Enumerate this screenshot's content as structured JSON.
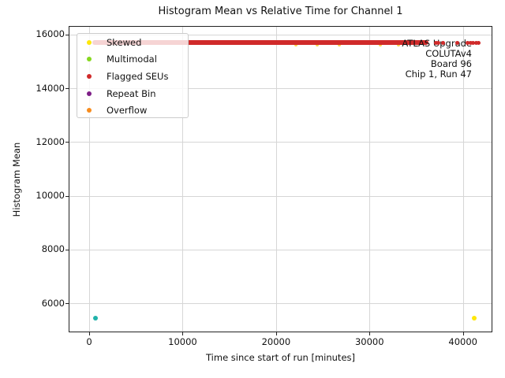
{
  "chart_data": {
    "type": "scatter",
    "title": "Histogram Mean vs Relative Time for Channel 1",
    "xlabel": "Time since start of run [minutes]",
    "ylabel": "Histogram Mean",
    "xlim": [
      -2200,
      43150
    ],
    "ylim": [
      4920,
      16320
    ],
    "xticks": [
      0,
      10000,
      20000,
      30000,
      40000
    ],
    "yticks": [
      6000,
      8000,
      10000,
      12000,
      14000,
      16000
    ],
    "grid": true,
    "legend_position": "upper left",
    "series": [
      {
        "name": "Flagged SEUs",
        "legend_label": "Flagged SEUs",
        "color": "#d02a2a",
        "marker_px": 5,
        "band": {
          "x_start": 300,
          "x_end": 36300,
          "y": 15700
        },
        "points": [
          [
            37100,
            15700
          ],
          [
            37400,
            15700
          ],
          [
            37900,
            15700
          ],
          [
            39400,
            15700
          ],
          [
            40450,
            15700
          ],
          [
            40800,
            15700
          ],
          [
            41100,
            15700
          ],
          [
            41400,
            15700
          ],
          [
            41700,
            15700
          ]
        ]
      },
      {
        "name": "unlabeled-teal",
        "legend_label": null,
        "color": "#20b2aa",
        "marker_px": 6,
        "points": [
          [
            0,
            15700
          ],
          [
            650,
            5440
          ]
        ]
      },
      {
        "name": "Skewed",
        "legend_label": "Skewed",
        "color": "#ffe70a",
        "marker_px": 6,
        "points": [
          [
            41200,
            5450
          ]
        ]
      }
    ],
    "band_specks": {
      "color": "#ffd34a",
      "y": 15700,
      "x": [
        22100,
        24400,
        26800,
        31200,
        33100
      ]
    }
  },
  "legend": {
    "items": [
      {
        "label": "Skewed",
        "color": "#ffe70a"
      },
      {
        "label": "Multimodal",
        "color": "#86d81f"
      },
      {
        "label": "Flagged SEUs",
        "color": "#d02a2a"
      },
      {
        "label": "Repeat Bin",
        "color": "#7e1e87"
      },
      {
        "label": "Overflow",
        "color": "#f78c1e"
      }
    ]
  },
  "annotation": {
    "lines": [
      "ATLAS Upgrade",
      "COLUTAv4",
      "Board 96",
      "Chip 1, Run 47"
    ]
  },
  "colors": {
    "grid": "#d6d6d6",
    "spine": "#222222",
    "text": "#111111",
    "background": "#ffffff"
  }
}
